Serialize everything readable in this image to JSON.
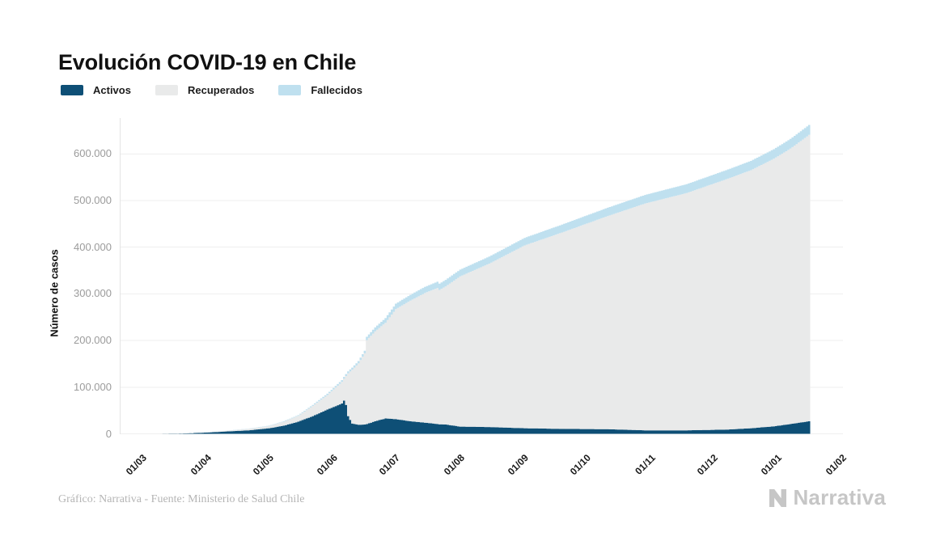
{
  "header": {
    "title": "Evolución COVID-19 en Chile"
  },
  "colors": {
    "activos": "#0e4f76",
    "recuperados": "#e9eaea",
    "fallecidos": "#bfe0ef",
    "gridline": "#efefef",
    "axis_line": "#e4e4e4"
  },
  "legend": [
    {
      "label": "Activos",
      "color": "#0e4f76"
    },
    {
      "label": "Recuperados",
      "color": "#e9eaea"
    },
    {
      "label": "Fallecidos",
      "color": "#bfe0ef"
    }
  ],
  "chart_data": {
    "type": "area",
    "stacked": true,
    "title": "Evolución COVID-19 en Chile",
    "xlabel": "",
    "ylabel": "Número de casos",
    "ylim": [
      0,
      680000
    ],
    "grid": "horizontal",
    "legend_position": "top-left",
    "y_ticks": [
      0,
      100000,
      200000,
      300000,
      400000,
      500000,
      600000
    ],
    "y_tick_labels": [
      "0",
      "100.000",
      "200.000",
      "300.000",
      "400.000",
      "500.000",
      "600.000"
    ],
    "x_tick_labels": [
      "01/03",
      "01/04",
      "01/05",
      "01/06",
      "01/07",
      "01/08",
      "01/09",
      "01/10",
      "01/11",
      "01/12",
      "01/01",
      "01/02"
    ],
    "x_tick_days": [
      0,
      31,
      61,
      92,
      122,
      153,
      184,
      214,
      245,
      275,
      306,
      337
    ],
    "x_domain_days": 337,
    "last_data_day": 321,
    "notes": "daily stacked values; day 0 = 01/03; sharp data-correction jump at day 108 (17/06); activos peak ~71.000 in early June",
    "series": [
      {
        "name": "Activos",
        "color": "#0e4f76",
        "points": [
          [
            0,
            0
          ],
          [
            10,
            90
          ],
          [
            21,
            900
          ],
          [
            31,
            2800
          ],
          [
            41,
            5200
          ],
          [
            51,
            7500
          ],
          [
            61,
            12000
          ],
          [
            68,
            17500
          ],
          [
            75,
            26000
          ],
          [
            82,
            38000
          ],
          [
            89,
            52000
          ],
          [
            96,
            65000
          ],
          [
            97,
            71000
          ],
          [
            98,
            62000
          ],
          [
            99,
            38000
          ],
          [
            101,
            22000
          ],
          [
            104,
            19500
          ],
          [
            107,
            20000
          ],
          [
            108,
            21000
          ],
          [
            112,
            27000
          ],
          [
            117,
            33000
          ],
          [
            122,
            31500
          ],
          [
            129,
            27000
          ],
          [
            136,
            24000
          ],
          [
            142,
            21000
          ],
          [
            143,
            20500
          ],
          [
            146,
            20000
          ],
          [
            153,
            15500
          ],
          [
            167,
            14500
          ],
          [
            184,
            12000
          ],
          [
            203,
            10500
          ],
          [
            223,
            10000
          ],
          [
            242,
            7500
          ],
          [
            262,
            7500
          ],
          [
            281,
            9000
          ],
          [
            293,
            12000
          ],
          [
            304,
            16000
          ],
          [
            312,
            21000
          ],
          [
            318,
            25000
          ],
          [
            321,
            27000
          ]
        ]
      },
      {
        "name": "Recuperados",
        "color": "#e9eaea",
        "points": [
          [
            0,
            0
          ],
          [
            10,
            8
          ],
          [
            21,
            90
          ],
          [
            31,
            550
          ],
          [
            41,
            1500
          ],
          [
            51,
            3000
          ],
          [
            61,
            4700
          ],
          [
            68,
            8400
          ],
          [
            75,
            12500
          ],
          [
            82,
            21900
          ],
          [
            89,
            31100
          ],
          [
            96,
            46200
          ],
          [
            97,
            47000
          ],
          [
            98,
            61900
          ],
          [
            99,
            91700
          ],
          [
            101,
            115400
          ],
          [
            104,
            131500
          ],
          [
            107,
            152400
          ],
          [
            108,
            179800
          ],
          [
            112,
            192500
          ],
          [
            117,
            205000
          ],
          [
            122,
            236000
          ],
          [
            129,
            258500
          ],
          [
            136,
            277800
          ],
          [
            142,
            291400
          ],
          [
            143,
            287900
          ],
          [
            146,
            296000
          ],
          [
            153,
            322000
          ],
          [
            167,
            350300
          ],
          [
            184,
            391800
          ],
          [
            203,
            422500
          ],
          [
            223,
            455200
          ],
          [
            242,
            486100
          ],
          [
            262,
            508500
          ],
          [
            281,
            536400
          ],
          [
            293,
            553000
          ],
          [
            304,
            573600
          ],
          [
            312,
            590200
          ],
          [
            318,
            605900
          ],
          [
            321,
            613800
          ]
        ]
      },
      {
        "name": "Fallecidos",
        "color": "#bfe0ef",
        "points": [
          [
            0,
            0
          ],
          [
            10,
            2
          ],
          [
            21,
            10
          ],
          [
            31,
            150
          ],
          [
            41,
            300
          ],
          [
            51,
            500
          ],
          [
            61,
            800
          ],
          [
            68,
            1100
          ],
          [
            75,
            1500
          ],
          [
            82,
            2100
          ],
          [
            89,
            2900
          ],
          [
            96,
            3800
          ],
          [
            97,
            4000
          ],
          [
            98,
            4100
          ],
          [
            99,
            4300
          ],
          [
            101,
            4600
          ],
          [
            104,
            5000
          ],
          [
            107,
            5600
          ],
          [
            108,
            7200
          ],
          [
            112,
            8500
          ],
          [
            117,
            10000
          ],
          [
            122,
            11500
          ],
          [
            129,
            12500
          ],
          [
            136,
            13200
          ],
          [
            142,
            13600
          ],
          [
            143,
            13600
          ],
          [
            146,
            14000
          ],
          [
            153,
            14500
          ],
          [
            167,
            15200
          ],
          [
            184,
            16200
          ],
          [
            203,
            17000
          ],
          [
            223,
            17800
          ],
          [
            242,
            18400
          ],
          [
            262,
            19000
          ],
          [
            281,
            19600
          ],
          [
            293,
            20000
          ],
          [
            304,
            20400
          ],
          [
            312,
            20800
          ],
          [
            318,
            21100
          ],
          [
            321,
            21200
          ]
        ]
      }
    ]
  },
  "footer": {
    "caption": "Gráfico: Narrativa - Fuente: Ministerio de Salud Chile",
    "brand": "Narrativa"
  }
}
